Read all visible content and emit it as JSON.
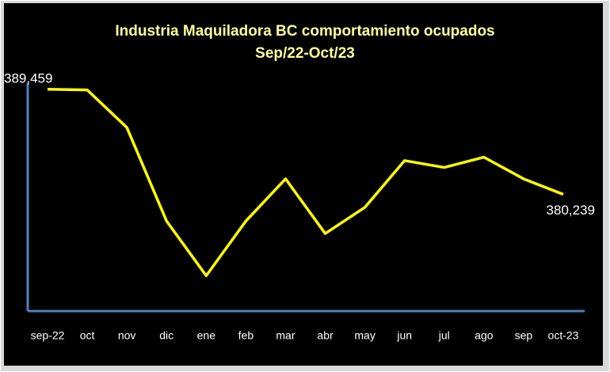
{
  "chart_data": {
    "type": "line",
    "title": "Industria Maquiladora BC comportamiento ocupados",
    "subtitle": "Sep/22-Oct/23",
    "categories": [
      "sep-22",
      "oct",
      "nov",
      "dic",
      "ene",
      "feb",
      "mar",
      "abr",
      "may",
      "jun",
      "jul",
      "ago",
      "sep",
      "oct-23"
    ],
    "series": [
      {
        "name": "ocupados",
        "color": "#ffff00",
        "values": [
          389459,
          389400,
          386100,
          377900,
          373100,
          377900,
          381600,
          376800,
          379100,
          383200,
          382600,
          383500,
          381600,
          380239
        ],
        "value_labels": [
          "389,459",
          null,
          null,
          null,
          null,
          null,
          null,
          null,
          null,
          null,
          null,
          null,
          null,
          "380,239"
        ]
      }
    ],
    "ylim": [
      370000,
      390000
    ]
  }
}
